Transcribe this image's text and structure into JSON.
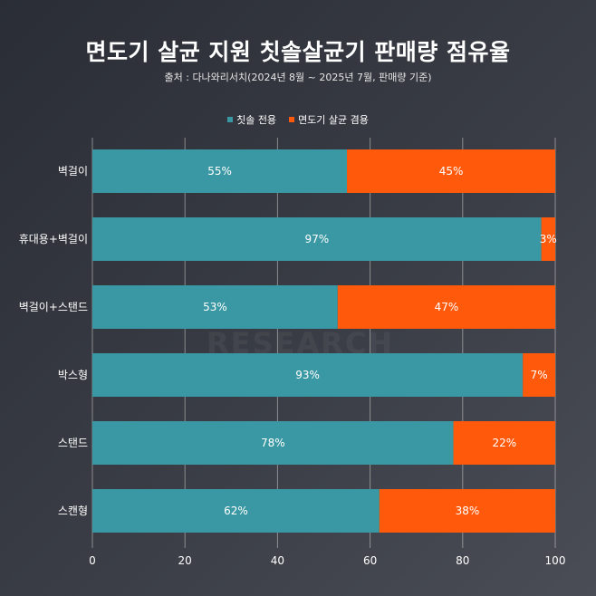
{
  "header": {
    "title": "면도기 살균 지원 칫솔살균기 판매량 점유율",
    "subtitle": "출처 : 다나와리서치(2024년 8월 ~ 2025년 7월, 판매량 기준)"
  },
  "watermark": "RESEARCH",
  "colors": {
    "series1": "#3a98a4",
    "series2": "#ff5a0c",
    "grid": "#d0d0d0"
  },
  "chart_data": {
    "type": "bar",
    "orientation": "horizontal",
    "stacked": true,
    "title": "면도기 살균 지원 칫솔살균기 판매량 점유율",
    "categories": [
      "벽걸이",
      "휴대용+벽걸이",
      "벽걸이+스탠드",
      "박스형",
      "스탠드",
      "스캔형"
    ],
    "series": [
      {
        "name": "칫솔 전용",
        "values": [
          55,
          97,
          53,
          93,
          78,
          62
        ],
        "labels": [
          "55%",
          "97%",
          "53%",
          "93%",
          "78%",
          "62%"
        ]
      },
      {
        "name": "면도기 살균 겸용",
        "values": [
          45,
          3,
          47,
          7,
          22,
          38
        ],
        "labels": [
          "45%",
          "3%",
          "47%",
          "7%",
          "22%",
          "38%"
        ]
      }
    ],
    "xlim": [
      0,
      100
    ],
    "xticks": [
      "0",
      "20",
      "40",
      "60",
      "80",
      "100"
    ],
    "grid": true,
    "legend": "top-center"
  }
}
